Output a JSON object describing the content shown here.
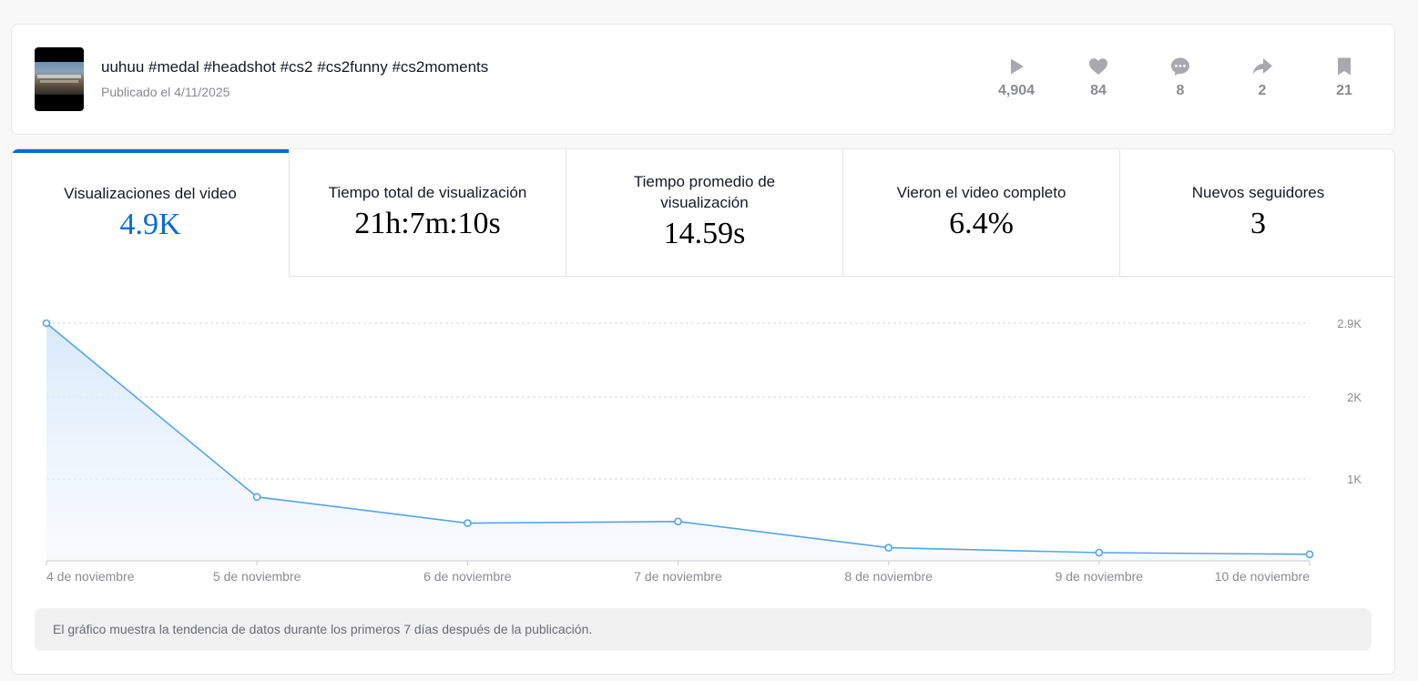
{
  "video": {
    "title": "uuhuu #medal #headshot #cs2 #cs2funny #cs2moments",
    "published": "Publicado el 4/11/2025",
    "thumbnail_icon": "video-thumbnail",
    "stats": [
      {
        "icon": "play-icon",
        "value": "4,904"
      },
      {
        "icon": "heart-icon",
        "value": "84"
      },
      {
        "icon": "comment-icon",
        "value": "8"
      },
      {
        "icon": "share-icon",
        "value": "2"
      },
      {
        "icon": "bookmark-icon",
        "value": "21"
      }
    ]
  },
  "metrics": [
    {
      "label": "Visualizaciones del video",
      "value": "4.9K",
      "active": true
    },
    {
      "label": "Tiempo total de visualización",
      "value": "21h:7m:10s",
      "active": false
    },
    {
      "label": "Tiempo promedio de visualización",
      "value": "14.59s",
      "active": false
    },
    {
      "label": "Vieron el video completo",
      "value": "6.4%",
      "active": false
    },
    {
      "label": "Nuevos seguidores",
      "value": "3",
      "active": false
    }
  ],
  "chart_data": {
    "type": "area",
    "title": "",
    "xlabel": "",
    "ylabel": "",
    "categories": [
      "4 de noviembre",
      "5 de noviembre",
      "6 de noviembre",
      "7 de noviembre",
      "8 de noviembre",
      "9 de noviembre",
      "10 de noviembre"
    ],
    "series": [
      {
        "values": [
          2900,
          780,
          460,
          480,
          160,
          100,
          80
        ]
      }
    ],
    "yticks": [
      1000,
      2000,
      2900
    ],
    "ytick_labels": [
      "1K",
      "2K",
      "2.9K"
    ],
    "ylim": [
      0,
      2900
    ],
    "grid": true,
    "y_axis_side": "right",
    "line_color": "#56a4e8",
    "fill_color": "#dcebfa"
  },
  "note": "El gráfico muestra la tendencia de datos durante los primeros 7 días después de la publicación.",
  "colors": {
    "accent": "#0a6bd6",
    "muted_text": "#8a8b91",
    "icon_gray": "#a8a8ad"
  }
}
